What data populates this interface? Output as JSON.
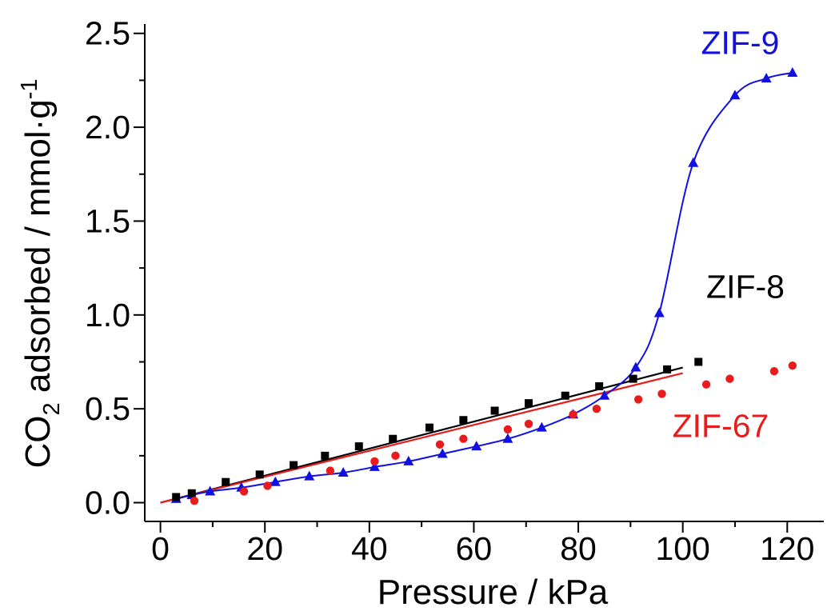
{
  "chart_data": {
    "type": "scatter",
    "xlabel": "Pressure / kPa",
    "ylabel": {
      "prefix": "CO",
      "subscript": "2",
      "middle": " adsorbed / mmol·g",
      "superscript": "-1"
    },
    "xlim": [
      -3,
      127
    ],
    "ylim": [
      -0.1,
      2.55
    ],
    "x_ticks": [
      0,
      20,
      40,
      60,
      80,
      100,
      120
    ],
    "y_ticks": [
      0.0,
      0.5,
      1.0,
      1.5,
      2.0,
      2.5
    ],
    "x_tick_labels": [
      "0",
      "20",
      "40",
      "60",
      "80",
      "100",
      "120"
    ],
    "y_tick_labels": [
      "0.0",
      "0.5",
      "1.0",
      "1.5",
      "2.0",
      "2.5"
    ],
    "grid": false,
    "series": [
      {
        "name": "ZIF-9",
        "color": "#1010e0",
        "marker": "triangle",
        "connected": true,
        "x": [
          3,
          6,
          9.5,
          15.5,
          22,
          28.5,
          35,
          41,
          47.5,
          54,
          60.5,
          66.5,
          73,
          79,
          85,
          91,
          95.5,
          102,
          110,
          116,
          121
        ],
        "y": [
          0.02,
          0.04,
          0.06,
          0.08,
          0.11,
          0.14,
          0.16,
          0.19,
          0.22,
          0.26,
          0.3,
          0.34,
          0.4,
          0.47,
          0.57,
          0.72,
          1.01,
          1.81,
          2.17,
          2.26,
          2.29
        ]
      },
      {
        "name": "ZIF-8",
        "color": "#000000",
        "marker": "square",
        "connected": false,
        "x": [
          3,
          6,
          12.5,
          19,
          25.5,
          31.5,
          38,
          44.5,
          51.5,
          58,
          64,
          70.5,
          77.5,
          84,
          90.5,
          97,
          103
        ],
        "y": [
          0.03,
          0.05,
          0.11,
          0.15,
          0.2,
          0.25,
          0.3,
          0.34,
          0.4,
          0.44,
          0.49,
          0.53,
          0.57,
          0.62,
          0.66,
          0.71,
          0.75
        ],
        "fit": {
          "x": [
            0,
            100
          ],
          "y": [
            0.0,
            0.72
          ]
        }
      },
      {
        "name": "ZIF-67",
        "color": "#e81c1c",
        "marker": "circle",
        "connected": false,
        "x": [
          6.5,
          16,
          20.5,
          32.5,
          41,
          45,
          53.5,
          58,
          66.5,
          70.5,
          79,
          83.5,
          91.5,
          96,
          104.5,
          109,
          117.5,
          121
        ],
        "y": [
          0.01,
          0.06,
          0.09,
          0.17,
          0.22,
          0.25,
          0.31,
          0.34,
          0.39,
          0.42,
          0.47,
          0.5,
          0.55,
          0.58,
          0.63,
          0.66,
          0.7,
          0.73
        ],
        "fit": {
          "x": [
            0,
            100
          ],
          "y": [
            0.0,
            0.69
          ]
        }
      }
    ],
    "annotations": [
      {
        "text": "ZIF-9",
        "color": "#1010e0",
        "x": 103.5,
        "y": 2.39
      },
      {
        "text": "ZIF-8",
        "color": "#000000",
        "x": 104.5,
        "y": 1.09
      },
      {
        "text": "ZIF-67",
        "color": "#e81c1c",
        "x": 98,
        "y": 0.35
      }
    ]
  }
}
